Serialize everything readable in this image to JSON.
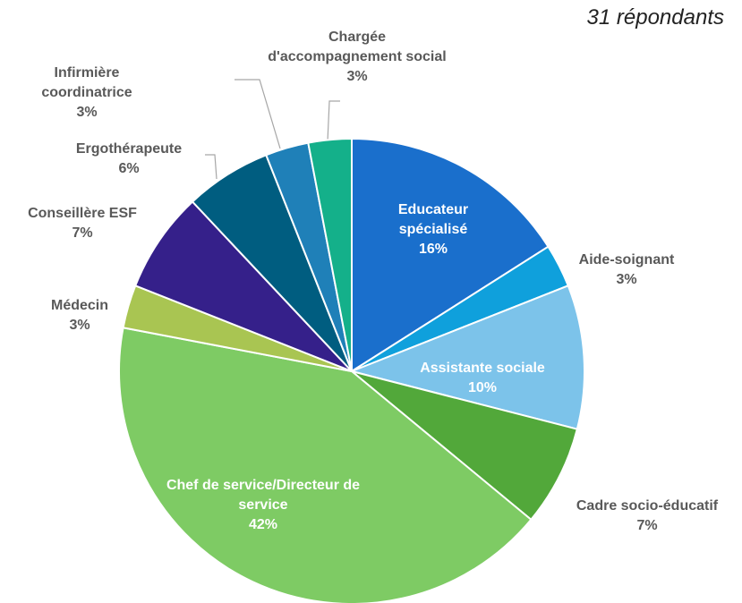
{
  "chart_data": {
    "type": "pie",
    "subtitle": "31 répondants",
    "categories": [
      "Educateur spécialisé",
      "Aide-soignant",
      "Assistante sociale",
      "Cadre socio-éducatif",
      "Chef de service/Directeur de service",
      "Médecin",
      "Conseillère ESF",
      "Ergothérapeute",
      "Infirmière coordinatrice",
      "Chargée d'accompagnement social"
    ],
    "values": [
      16,
      3,
      10,
      7,
      42,
      3,
      7,
      6,
      3,
      3
    ],
    "value_labels": [
      "16%",
      "3%",
      "10%",
      "7%",
      "42%",
      "3%",
      "7%",
      "6%",
      "3%",
      "3%"
    ],
    "colors": [
      "#1a6fcc",
      "#0fa0dc",
      "#7cc3ea",
      "#52a83a",
      "#7ecb64",
      "#a9c552",
      "#35208a",
      "#005d80",
      "#1f80b8",
      "#14b08a"
    ]
  }
}
